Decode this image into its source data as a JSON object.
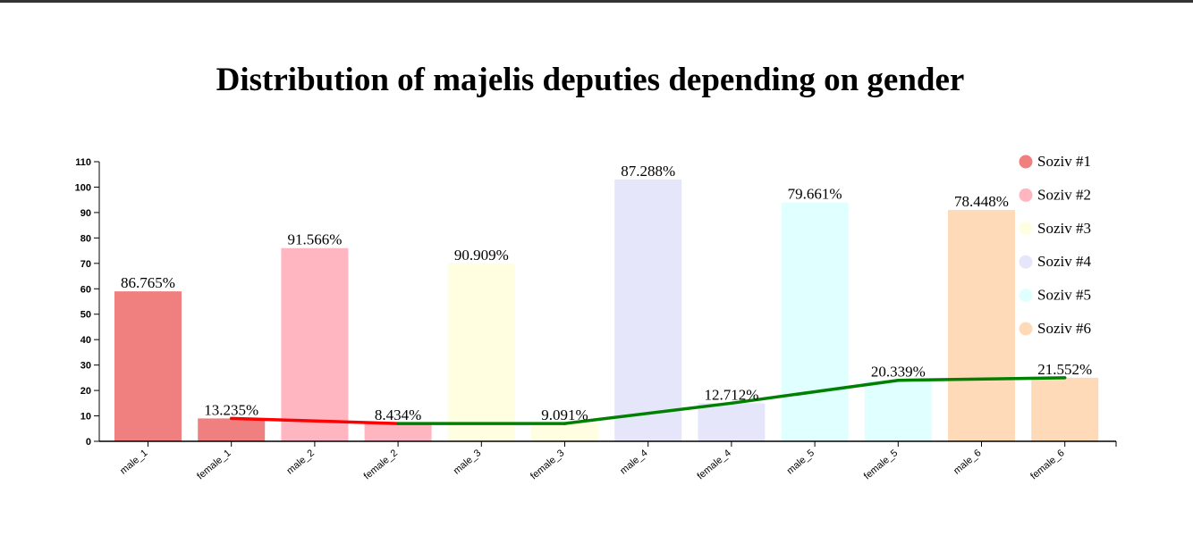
{
  "chart_data": {
    "type": "bar",
    "title": "Distribution of majelis deputies depending on gender",
    "xlabel": "",
    "ylabel": "",
    "ylim": [
      0,
      110
    ],
    "yticks": [
      0,
      10,
      20,
      30,
      40,
      50,
      60,
      70,
      80,
      90,
      100,
      110
    ],
    "categories": [
      "male_1",
      "female_1",
      "male_2",
      "female_2",
      "male_3",
      "female_3",
      "male_4",
      "female_4",
      "male_5",
      "female_5",
      "male_6",
      "female_6"
    ],
    "values": [
      59,
      9,
      76,
      7,
      70,
      7,
      103,
      15,
      94,
      24,
      91,
      25
    ],
    "bar_labels": [
      "86.765%",
      "13.235%",
      "91.566%",
      "8.434%",
      "90.909%",
      "9.091%",
      "87.288%",
      "12.712%",
      "79.661%",
      "20.339%",
      "78.448%",
      "21.552%"
    ],
    "bar_colors": [
      "#f08080",
      "#f08080",
      "#ffb6c1",
      "#ffb6c1",
      "#fffee0",
      "#fffee0",
      "#e6e6fa",
      "#e6e6fa",
      "#e0ffff",
      "#e0ffff",
      "#ffdab9",
      "#ffdab9"
    ],
    "legend": [
      {
        "label": "Soziv #1",
        "color": "#f08080"
      },
      {
        "label": "Soziv #2",
        "color": "#ffb6c1"
      },
      {
        "label": "Soziv #3",
        "color": "#fffee0"
      },
      {
        "label": "Soziv #4",
        "color": "#e6e6fa"
      },
      {
        "label": "Soziv #5",
        "color": "#e0ffff"
      },
      {
        "label": "Soziv #6",
        "color": "#ffdab9"
      }
    ],
    "legend_position": "top-right",
    "line": {
      "categories": [
        "female_1",
        "female_2",
        "female_3",
        "female_4",
        "female_5",
        "female_6"
      ],
      "values": [
        9,
        7,
        7,
        15,
        24,
        25
      ],
      "segment_colors": [
        "#ff0000",
        "#008000",
        "#008000",
        "#008000",
        "#008000"
      ]
    },
    "grid": false
  }
}
